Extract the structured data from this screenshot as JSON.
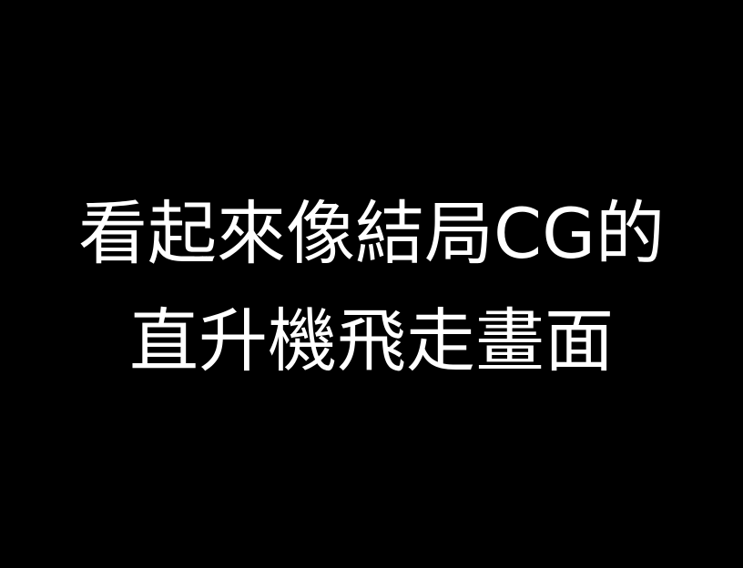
{
  "caption": {
    "line1": "看起來像結局CG的",
    "line2": "直升機飛走畫面"
  },
  "colors": {
    "background": "#000000",
    "text": "#ffffff"
  }
}
